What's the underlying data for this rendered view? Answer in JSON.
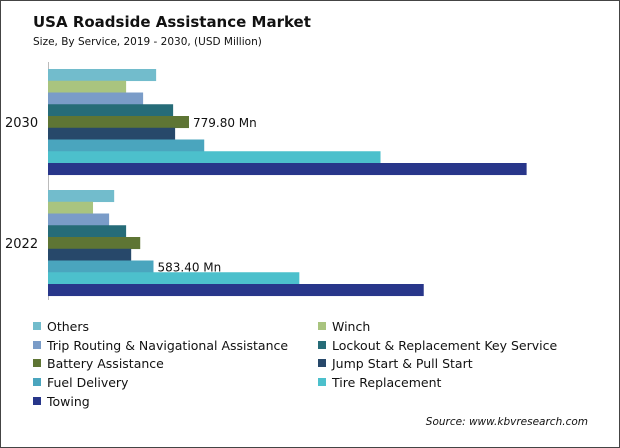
{
  "chart_data": {
    "type": "bar",
    "orientation": "horizontal",
    "title": "USA Roadside Assistance Market",
    "subtitle": "Size, By Service, 2019 - 2030, (USD Million)",
    "categories": [
      "2030",
      "2022"
    ],
    "series": [
      {
        "name": "Others",
        "color": "#72bccc",
        "values": [
          598,
          366
        ]
      },
      {
        "name": "Winch",
        "color": "#a9c47f",
        "values": [
          432,
          249
        ]
      },
      {
        "name": "Trip Routing & Navigational Assistance",
        "color": "#7a9cc8",
        "values": [
          526,
          338
        ]
      },
      {
        "name": "Lockout & Replacement Key Service",
        "color": "#266c78",
        "values": [
          692,
          432
        ]
      },
      {
        "name": "Battery Assistance",
        "color": "#5e7534",
        "values": [
          779.8,
          510
        ]
      },
      {
        "name": "Jump Start & Pull Start",
        "color": "#27486a",
        "values": [
          703,
          460
        ]
      },
      {
        "name": "Fuel Delivery",
        "color": "#4aa5be",
        "values": [
          864,
          583.4
        ]
      },
      {
        "name": "Tire Replacement",
        "color": "#4cc0cc",
        "values": [
          1839,
          1390
        ]
      },
      {
        "name": "Towing",
        "color": "#28368a",
        "values": [
          2647,
          2078
        ]
      }
    ],
    "annotations": [
      {
        "category": "2030",
        "series": "Battery Assistance",
        "text": "779.80  Mn"
      },
      {
        "category": "2022",
        "series": "Fuel Delivery",
        "text": "583.40  Mn"
      }
    ],
    "xlim": [
      0,
      3000
    ],
    "x_axis_visible": false,
    "grid": false,
    "legend_placement": "bottom",
    "source": "Source: www.kbvresearch.com"
  }
}
